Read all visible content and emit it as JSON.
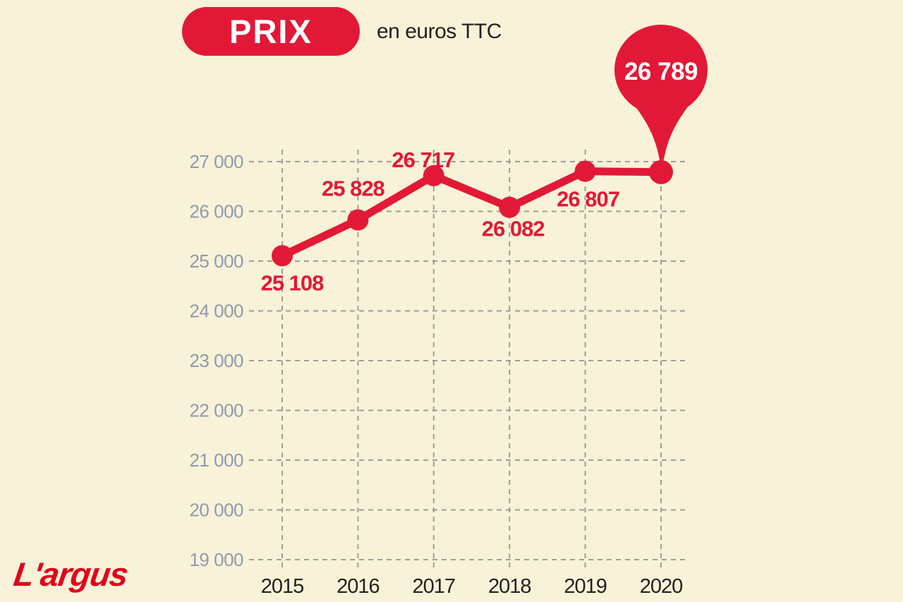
{
  "header": {
    "badge": "PRIX",
    "subtitle": "en euros TTC"
  },
  "footer": {
    "logo": "L'argus"
  },
  "colors": {
    "background": "#f8f2d8",
    "accent_red": "#e11937",
    "logo_red": "#e2001a",
    "grid": "#90908a",
    "y_axis_label": "#8d9aae",
    "x_axis_label": "#22221f",
    "badge_text": "#ffffff",
    "balloon_text": "#ffffff"
  },
  "chart_data": {
    "type": "line",
    "title": "PRIX",
    "subtitle": "en euros TTC",
    "categories": [
      "2015",
      "2016",
      "2017",
      "2018",
      "2019",
      "2020"
    ],
    "values": [
      25108,
      25828,
      26717,
      26082,
      26807,
      26789
    ],
    "data_labels": [
      "25 108",
      "25 828",
      "26 717",
      "26 082",
      "26 807",
      "26 789"
    ],
    "ylim": [
      19000,
      27000
    ],
    "ytick_step": 1000,
    "ytick_labels": [
      "27 000",
      "26 000",
      "25 000",
      "24 000",
      "23 000",
      "22 000",
      "21 000",
      "20 000",
      "19 000"
    ],
    "grid": true,
    "legend": "none",
    "highlighted_point": {
      "category": "2020",
      "value": 26789,
      "style": "balloon-pin"
    }
  }
}
